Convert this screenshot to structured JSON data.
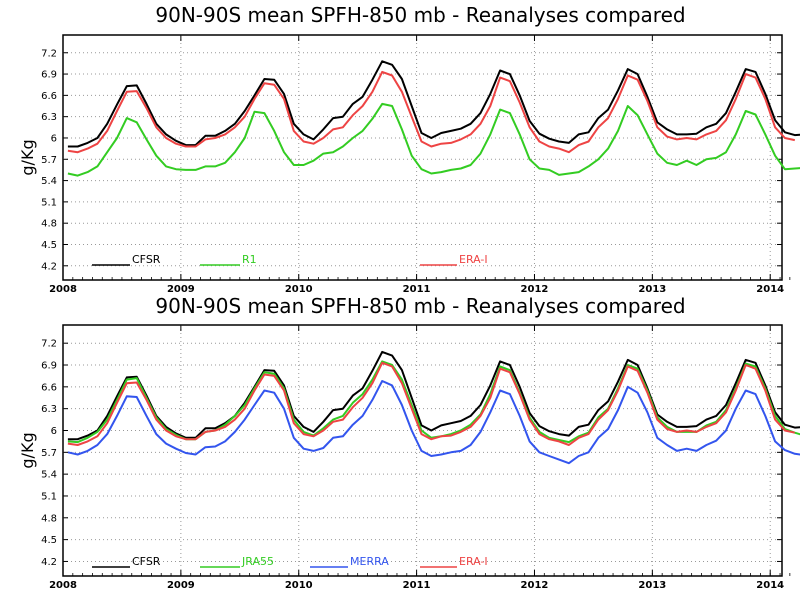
{
  "chart_data": [
    {
      "type": "line",
      "title": "90N-90S mean SPFH-850 mb - Reanalyses compared",
      "ylabel": "g/Kg",
      "xlabel": "",
      "xlim": [
        2008.0,
        2014.1
      ],
      "ylim": [
        4.0,
        7.45
      ],
      "yticks": [
        "4.2",
        "4.5",
        "4.8",
        "5.1",
        "5.4",
        "5.7",
        "6",
        "6.3",
        "6.6",
        "6.9",
        "7.2"
      ],
      "xticks": [
        "2008",
        "2009",
        "2010",
        "2011",
        "2012",
        "2013",
        "2014"
      ],
      "grid": true,
      "legend_placement": "bottom",
      "series": [
        {
          "name": "CFSR",
          "color": "#000000",
          "values": [
            5.88,
            5.88,
            5.93,
            6.0,
            6.2,
            6.47,
            6.73,
            6.74,
            6.48,
            6.2,
            6.05,
            5.96,
            5.9,
            5.9,
            6.03,
            6.03,
            6.1,
            6.2,
            6.38,
            6.6,
            6.83,
            6.82,
            6.62,
            6.2,
            6.05,
            5.98,
            6.12,
            6.28,
            6.3,
            6.48,
            6.58,
            6.82,
            7.08,
            7.03,
            6.83,
            6.45,
            6.07,
            6.0,
            6.07,
            6.1,
            6.13,
            6.2,
            6.35,
            6.62,
            6.95,
            6.9,
            6.6,
            6.24,
            6.06,
            5.99,
            5.95,
            5.93,
            6.05,
            6.08,
            6.28,
            6.4,
            6.67,
            6.97,
            6.9,
            6.58,
            6.22,
            6.12,
            6.05,
            6.05,
            6.06,
            6.15,
            6.2,
            6.35,
            6.65,
            6.97,
            6.93,
            6.62,
            6.25,
            6.08,
            6.04,
            6.05,
            6.05
          ]
        },
        {
          "name": "R1",
          "color": "#33cc22",
          "values": [
            5.5,
            5.47,
            5.52,
            5.6,
            5.8,
            6.0,
            6.28,
            6.22,
            5.98,
            5.75,
            5.6,
            5.56,
            5.55,
            5.55,
            5.6,
            5.6,
            5.65,
            5.8,
            6.0,
            6.37,
            6.35,
            6.1,
            5.8,
            5.62,
            5.62,
            5.68,
            5.78,
            5.8,
            5.88,
            6.0,
            6.1,
            6.27,
            6.48,
            6.45,
            6.12,
            5.75,
            5.56,
            5.5,
            5.52,
            5.55,
            5.57,
            5.62,
            5.78,
            6.05,
            6.4,
            6.35,
            6.05,
            5.7,
            5.57,
            5.55,
            5.48,
            5.5,
            5.52,
            5.6,
            5.7,
            5.85,
            6.1,
            6.45,
            6.32,
            6.05,
            5.78,
            5.65,
            5.62,
            5.68,
            5.62,
            5.7,
            5.72,
            5.8,
            6.05,
            6.38,
            6.33,
            6.05,
            5.75,
            5.56,
            5.57,
            5.58,
            5.57
          ]
        },
        {
          "name": "ERA-I",
          "color": "#ee4444",
          "values": [
            5.82,
            5.8,
            5.85,
            5.92,
            6.1,
            6.38,
            6.65,
            6.66,
            6.42,
            6.15,
            6.0,
            5.92,
            5.88,
            5.88,
            5.98,
            6.0,
            6.05,
            6.15,
            6.3,
            6.55,
            6.77,
            6.75,
            6.55,
            6.1,
            5.95,
            5.92,
            6.0,
            6.12,
            6.15,
            6.32,
            6.45,
            6.65,
            6.93,
            6.88,
            6.65,
            6.3,
            5.95,
            5.88,
            5.92,
            5.93,
            5.98,
            6.05,
            6.2,
            6.45,
            6.85,
            6.8,
            6.5,
            6.15,
            5.95,
            5.88,
            5.85,
            5.8,
            5.9,
            5.95,
            6.15,
            6.28,
            6.55,
            6.88,
            6.82,
            6.52,
            6.15,
            6.02,
            5.98,
            6.0,
            5.98,
            6.05,
            6.1,
            6.25,
            6.55,
            6.9,
            6.85,
            6.55,
            6.15,
            6.0,
            5.97,
            null,
            null
          ]
        }
      ]
    },
    {
      "type": "line",
      "title": "90N-90S mean SPFH-850 mb - Reanalyses compared",
      "ylabel": "g/Kg",
      "xlabel": "",
      "xlim": [
        2008.0,
        2014.1
      ],
      "ylim": [
        4.0,
        7.45
      ],
      "yticks": [
        "4.2",
        "4.5",
        "4.8",
        "5.1",
        "5.4",
        "5.7",
        "6",
        "6.3",
        "6.6",
        "6.9",
        "7.2"
      ],
      "xticks": [
        "2008",
        "2009",
        "2010",
        "2011",
        "2012",
        "2013",
        "2014"
      ],
      "grid": true,
      "legend_placement": "bottom",
      "series": [
        {
          "name": "CFSR",
          "color": "#000000",
          "values": [
            5.88,
            5.88,
            5.93,
            6.0,
            6.2,
            6.47,
            6.73,
            6.74,
            6.48,
            6.2,
            6.05,
            5.96,
            5.9,
            5.9,
            6.03,
            6.03,
            6.1,
            6.2,
            6.38,
            6.6,
            6.83,
            6.82,
            6.62,
            6.2,
            6.05,
            5.98,
            6.12,
            6.28,
            6.3,
            6.48,
            6.58,
            6.82,
            7.08,
            7.03,
            6.83,
            6.45,
            6.07,
            6.0,
            6.07,
            6.1,
            6.13,
            6.2,
            6.35,
            6.62,
            6.95,
            6.9,
            6.6,
            6.24,
            6.06,
            5.99,
            5.95,
            5.93,
            6.05,
            6.08,
            6.28,
            6.4,
            6.67,
            6.97,
            6.9,
            6.58,
            6.22,
            6.12,
            6.05,
            6.05,
            6.06,
            6.15,
            6.2,
            6.35,
            6.65,
            6.97,
            6.93,
            6.62,
            6.25,
            6.08,
            6.04,
            6.05,
            6.05
          ]
        },
        {
          "name": "JRA55",
          "color": "#33cc22",
          "values": [
            5.85,
            5.84,
            5.9,
            5.98,
            6.15,
            6.42,
            6.7,
            6.72,
            6.45,
            6.18,
            6.02,
            5.94,
            5.88,
            5.88,
            5.98,
            6.0,
            6.08,
            6.2,
            6.35,
            6.58,
            6.8,
            6.78,
            6.58,
            6.15,
            5.98,
            5.93,
            6.03,
            6.15,
            6.2,
            6.38,
            6.5,
            6.7,
            6.95,
            6.9,
            6.7,
            6.35,
            6.0,
            5.9,
            5.92,
            5.95,
            6.0,
            6.08,
            6.22,
            6.5,
            6.88,
            6.83,
            6.52,
            6.18,
            5.98,
            5.9,
            5.87,
            5.84,
            5.92,
            5.97,
            6.18,
            6.3,
            6.58,
            6.9,
            6.85,
            6.55,
            6.18,
            6.05,
            5.98,
            5.98,
            5.98,
            6.07,
            6.12,
            6.28,
            6.58,
            6.92,
            6.88,
            6.58,
            6.2,
            6.02,
            5.97,
            5.93,
            5.95
          ]
        },
        {
          "name": "MERRA",
          "color": "#3355ee",
          "values": [
            5.7,
            5.67,
            5.72,
            5.8,
            5.95,
            6.2,
            6.47,
            6.46,
            6.2,
            5.95,
            5.82,
            5.75,
            5.69,
            5.67,
            5.77,
            5.78,
            5.85,
            5.98,
            6.15,
            6.35,
            6.55,
            6.52,
            6.3,
            5.9,
            5.75,
            5.72,
            5.76,
            5.9,
            5.92,
            6.08,
            6.2,
            6.42,
            6.68,
            6.62,
            6.35,
            6.0,
            5.72,
            5.65,
            5.67,
            5.7,
            5.72,
            5.8,
            5.98,
            6.25,
            6.55,
            6.5,
            6.2,
            5.85,
            5.7,
            5.65,
            5.6,
            5.55,
            5.65,
            5.7,
            5.9,
            6.02,
            6.28,
            6.6,
            6.52,
            6.25,
            5.9,
            5.8,
            5.72,
            5.75,
            5.72,
            5.8,
            5.86,
            6.0,
            6.3,
            6.55,
            6.5,
            6.2,
            5.85,
            5.73,
            5.68,
            5.66,
            null
          ]
        },
        {
          "name": "ERA-I",
          "color": "#ee4444",
          "values": [
            5.82,
            5.8,
            5.85,
            5.92,
            6.1,
            6.38,
            6.65,
            6.66,
            6.42,
            6.15,
            6.0,
            5.92,
            5.88,
            5.88,
            5.98,
            6.0,
            6.05,
            6.15,
            6.3,
            6.55,
            6.77,
            6.75,
            6.55,
            6.1,
            5.95,
            5.92,
            6.0,
            6.12,
            6.15,
            6.32,
            6.45,
            6.65,
            6.93,
            6.88,
            6.65,
            6.3,
            5.95,
            5.88,
            5.92,
            5.93,
            5.98,
            6.05,
            6.2,
            6.45,
            6.85,
            6.8,
            6.5,
            6.15,
            5.95,
            5.88,
            5.85,
            5.8,
            5.9,
            5.95,
            6.15,
            6.28,
            6.55,
            6.88,
            6.82,
            6.52,
            6.15,
            6.02,
            5.98,
            6.0,
            5.98,
            6.05,
            6.1,
            6.25,
            6.55,
            6.9,
            6.85,
            6.55,
            6.15,
            6.0,
            5.97,
            null,
            null
          ]
        }
      ]
    }
  ]
}
